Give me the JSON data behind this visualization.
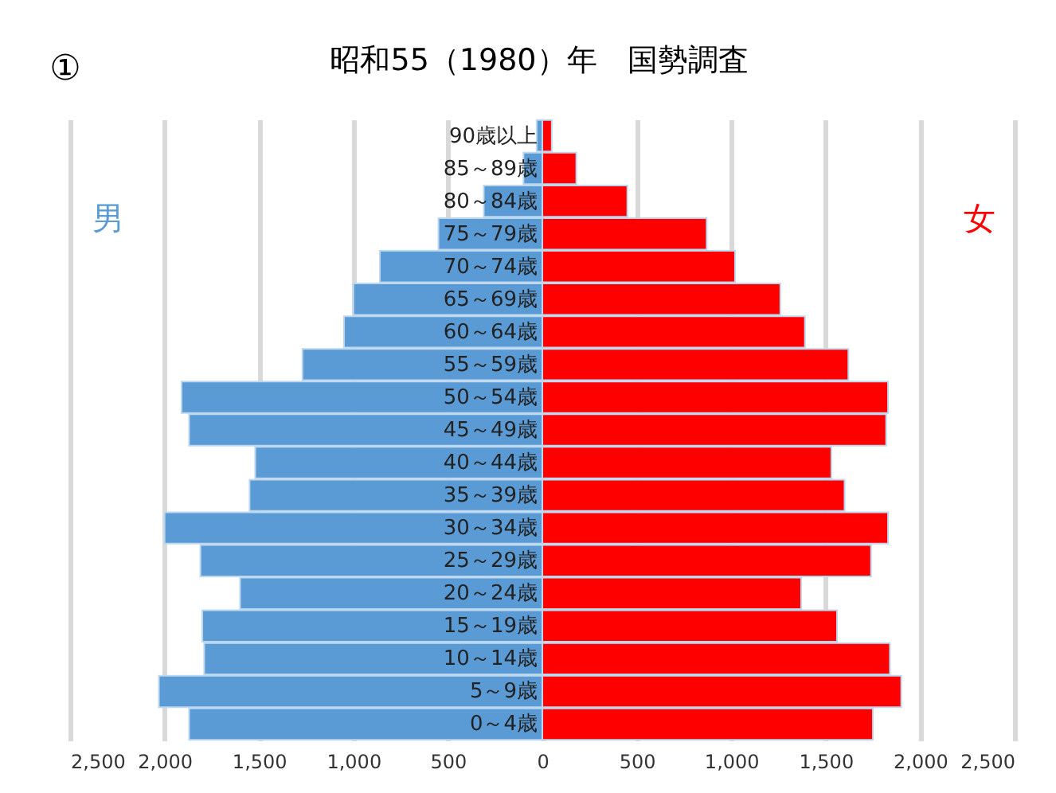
{
  "chart_data": {
    "type": "bar",
    "orientation": "horizontal",
    "title": "昭和55（1980）年　国勢調査",
    "annotations": [
      "①"
    ],
    "categories": [
      "90歳以上",
      "85～89歳",
      "80～84歳",
      "75～79歳",
      "70～74歳",
      "65～69歳",
      "60～64歳",
      "55～59歳",
      "50～54歳",
      "45～49歳",
      "40～44歳",
      "35～39歳",
      "30～34歳",
      "25～29歳",
      "20～24歳",
      "15～19歳",
      "10～14歳",
      "5～9歳",
      "0～4歳"
    ],
    "series": [
      {
        "name": "男",
        "color": "#5b9bd5",
        "values": [
          -30,
          -100,
          -310,
          -550,
          -860,
          -1000,
          -1050,
          -1270,
          -1910,
          -1870,
          -1520,
          -1550,
          -2000,
          -1810,
          -1600,
          -1800,
          -1790,
          -2030,
          -1870
        ]
      },
      {
        "name": "女",
        "color": "#ff0000",
        "values": [
          50,
          180,
          450,
          870,
          1020,
          1260,
          1390,
          1620,
          1830,
          1820,
          1530,
          1600,
          1830,
          1740,
          1370,
          1560,
          1840,
          1900,
          1750
        ]
      }
    ],
    "xlim": [
      -2500,
      2500
    ],
    "xticks": [
      {
        "value": -2500,
        "label": "2,500"
      },
      {
        "value": -2000,
        "label": "2,000"
      },
      {
        "value": -1500,
        "label": "1,500"
      },
      {
        "value": -1000,
        "label": "1,000"
      },
      {
        "value": -500,
        "label": "500"
      },
      0,
      500,
      {
        "value": 1000,
        "label": "1,000"
      },
      {
        "value": 1500,
        "label": "1,500"
      },
      {
        "value": 2000,
        "label": "2,000"
      },
      {
        "value": 2500,
        "label": "2,500"
      }
    ],
    "grid": "x",
    "legend": false,
    "stacked": true,
    "tick_labels": "x"
  }
}
